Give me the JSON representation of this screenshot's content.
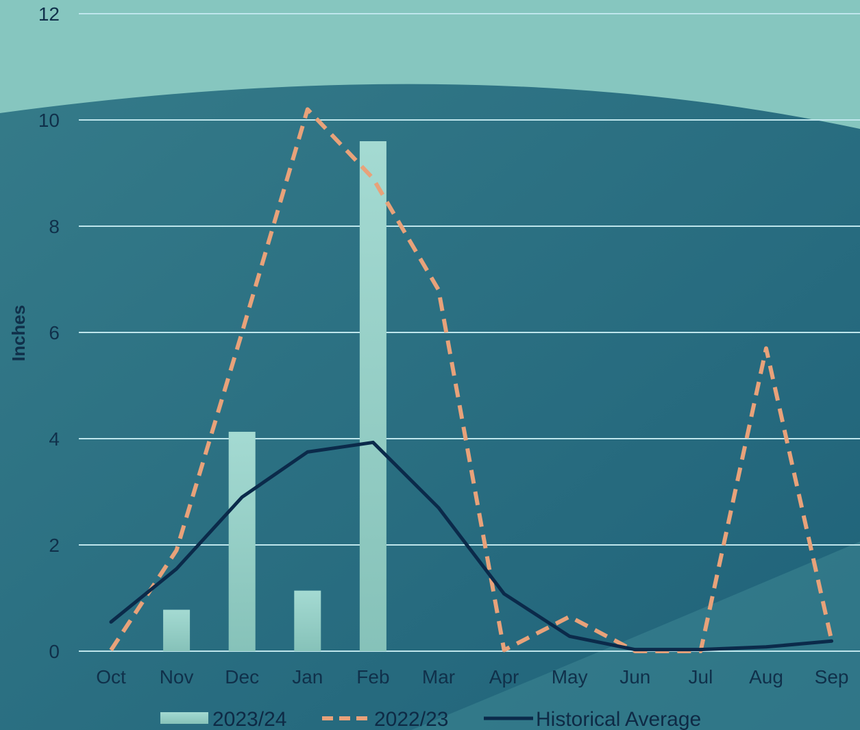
{
  "chart_data": {
    "type": "bar",
    "title": "",
    "xlabel": "",
    "ylabel": "Inches",
    "ylim": [
      0,
      12
    ],
    "yticks": [
      0,
      2,
      4,
      6,
      8,
      10,
      12
    ],
    "grid": true,
    "legend_position": "bottom",
    "categories": [
      "Oct",
      "Nov",
      "Dec",
      "Jan",
      "Feb",
      "Mar",
      "Apr",
      "May",
      "Jun",
      "Jul",
      "Aug",
      "Sep"
    ],
    "series": [
      {
        "name": "2023/24",
        "kind": "bar",
        "color": "#9fd4cc",
        "values": [
          null,
          0.78,
          4.13,
          1.14,
          9.6,
          null,
          null,
          null,
          null,
          null,
          null,
          null
        ]
      },
      {
        "name": "2022/23",
        "kind": "line",
        "style": "dashed",
        "color": "#e8a27a",
        "values": [
          0.02,
          1.9,
          6.0,
          10.2,
          8.9,
          6.8,
          0.02,
          0.65,
          0.0,
          0.0,
          5.7,
          0.2
        ]
      },
      {
        "name": "Historical Average",
        "kind": "line",
        "style": "solid",
        "color": "#0b2a4a",
        "values": [
          0.55,
          1.55,
          2.9,
          3.75,
          3.93,
          2.7,
          1.08,
          0.28,
          0.03,
          0.03,
          0.08,
          0.19
        ]
      }
    ]
  },
  "colors": {
    "band_top": "#86c6bf",
    "background": "#2e7384",
    "gridline": "#bfe6ec",
    "text": "#10304a"
  }
}
